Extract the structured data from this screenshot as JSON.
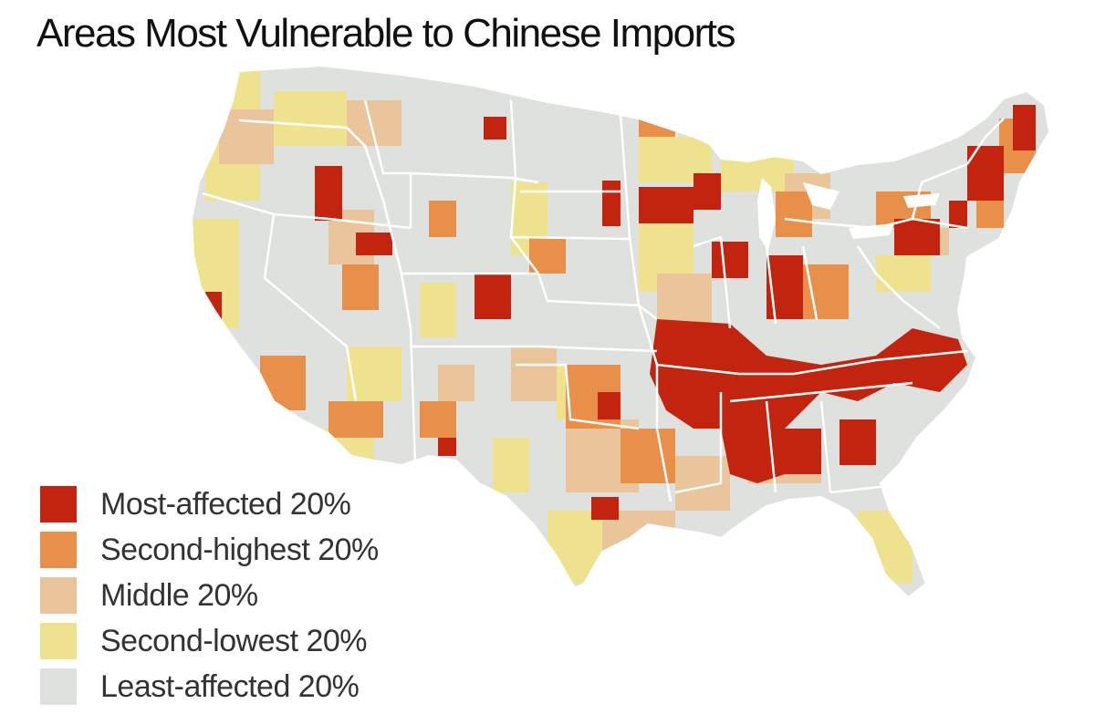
{
  "title": "Areas Most Vulnerable to Chinese Imports",
  "legend": {
    "items": [
      {
        "label": "Most-affected 20%",
        "color": "#c22410"
      },
      {
        "label": "Second-highest 20%",
        "color": "#e8904a"
      },
      {
        "label": "Middle 20%",
        "color": "#eac49b"
      },
      {
        "label": "Second-lowest 20%",
        "color": "#eee28e"
      },
      {
        "label": "Least-affected 20%",
        "color": "#dfe1de"
      }
    ]
  },
  "map": {
    "region": "contiguous-united-states",
    "base_color": "#dfe1de",
    "border_color": "#ffffff"
  }
}
